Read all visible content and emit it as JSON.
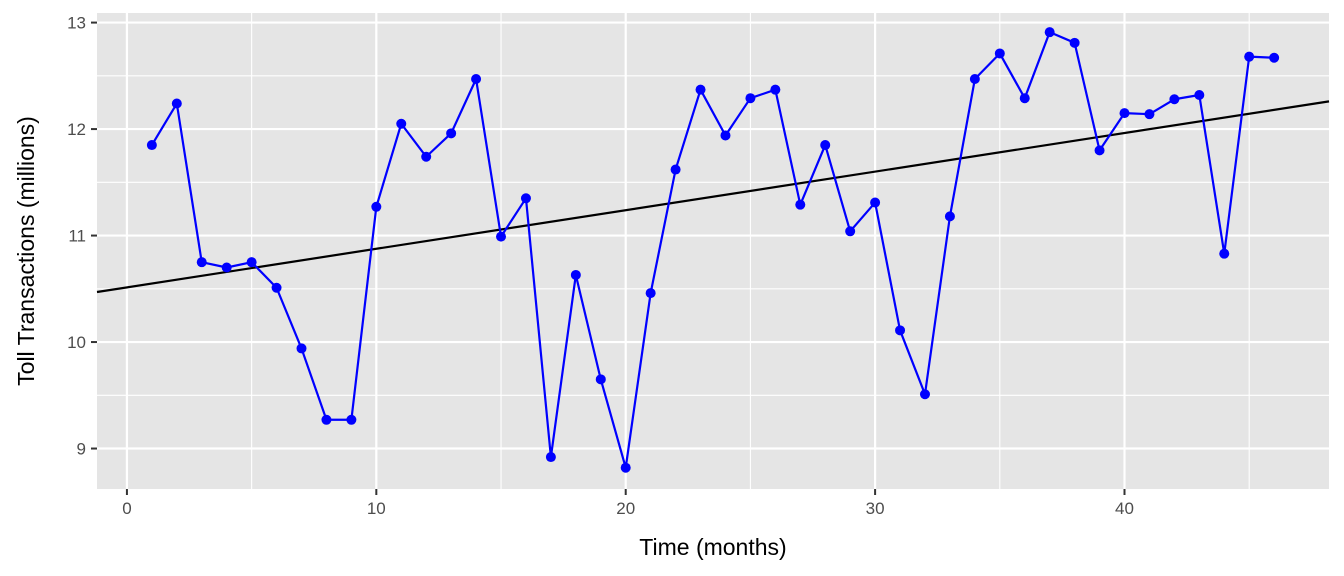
{
  "chart_data": {
    "type": "line",
    "title": "",
    "xlabel": "Time (months)",
    "ylabel": "Toll Transactions (millions)",
    "xlim": [
      -1.2,
      48.2
    ],
    "ylim": [
      8.62,
      13.09
    ],
    "x_ticks": [
      0,
      10,
      20,
      30,
      40
    ],
    "y_ticks": [
      9,
      10,
      11,
      12,
      13
    ],
    "grid": true,
    "legend": "none",
    "colors": {
      "series": "#0000ff",
      "trend": "#000000",
      "panel": "#e5e5e5",
      "grid": "#ffffff"
    },
    "series": [
      {
        "x": [
          1,
          2,
          3,
          4,
          5,
          6,
          7,
          8,
          9,
          10,
          11,
          12,
          13,
          14,
          15,
          16,
          17,
          18,
          19,
          20,
          21,
          22,
          23,
          24,
          25,
          26,
          27,
          28,
          29,
          30,
          31,
          32,
          33,
          34,
          35,
          36,
          37,
          38,
          39,
          40,
          41,
          42,
          43,
          44,
          45,
          46
        ],
        "values": [
          11.85,
          12.24,
          10.75,
          10.7,
          10.75,
          10.51,
          9.94,
          9.27,
          9.27,
          11.27,
          12.05,
          11.74,
          11.96,
          12.47,
          10.99,
          11.35,
          8.92,
          10.63,
          9.65,
          8.82,
          10.46,
          11.62,
          12.37,
          11.94,
          12.29,
          12.37,
          11.29,
          11.85,
          11.04,
          11.31,
          10.11,
          9.51,
          11.18,
          12.47,
          12.71,
          12.29,
          12.91,
          12.81,
          11.8,
          12.15,
          12.14,
          12.28,
          12.32,
          10.83,
          12.68,
          12.67
        ]
      }
    ],
    "trend_line": {
      "x": [
        -1.2,
        48.2
      ],
      "y": [
        10.47,
        12.26
      ]
    }
  }
}
